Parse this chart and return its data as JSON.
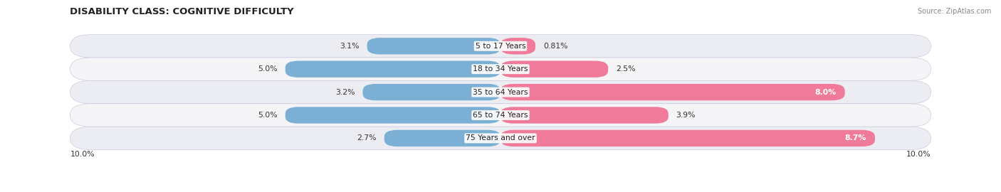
{
  "title": "DISABILITY CLASS: COGNITIVE DIFFICULTY",
  "source": "Source: ZipAtlas.com",
  "categories": [
    "5 to 17 Years",
    "18 to 34 Years",
    "35 to 64 Years",
    "65 to 74 Years",
    "75 Years and over"
  ],
  "male_values": [
    3.1,
    5.0,
    3.2,
    5.0,
    2.7
  ],
  "female_values": [
    0.81,
    2.5,
    8.0,
    3.9,
    8.7
  ],
  "male_color": "#7bafd4",
  "female_color": "#f07a9a",
  "row_bg_even": "#ecedf2",
  "row_bg_odd": "#f5f5f8",
  "max_val": 10.0,
  "title_fontsize": 9.5,
  "label_fontsize": 7.8,
  "value_fontsize": 7.8,
  "source_fontsize": 7.0,
  "legend_fontsize": 8.0
}
